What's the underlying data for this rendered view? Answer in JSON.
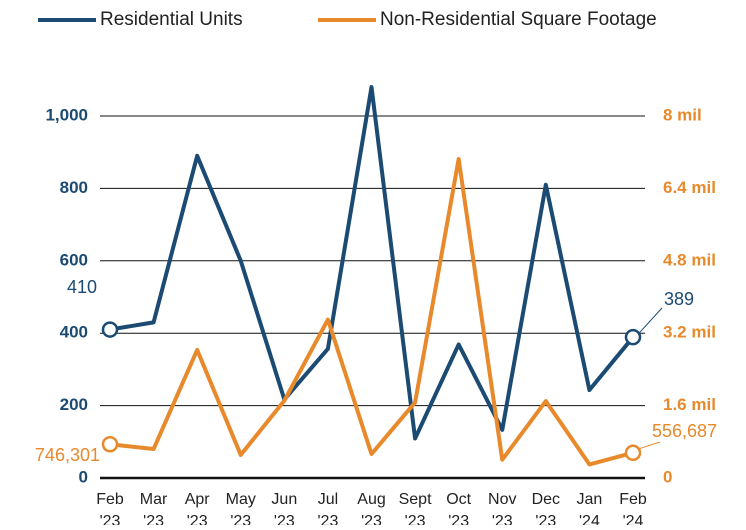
{
  "chart_data": {
    "type": "line",
    "categories": [
      "Feb '23",
      "Mar '23",
      "Apr '23",
      "May '23",
      "Jun '23",
      "Jul '23",
      "Aug '23",
      "Sept '23",
      "Oct '23",
      "Nov '23",
      "Dec '23",
      "Jan '24",
      "Feb '24"
    ],
    "series": [
      {
        "name": "Residential Units",
        "color": "#1b4a73",
        "values": [
          410,
          430,
          890,
          600,
          217,
          357,
          1080,
          109,
          369,
          133,
          810,
          243,
          389
        ]
      },
      {
        "name": "Non-Residential Square Footage",
        "color": "#e8892b",
        "axis": "y2",
        "values": [
          746301,
          640000,
          2830000,
          510000,
          1710000,
          3500000,
          530000,
          1670000,
          7050000,
          405000,
          1700000,
          300000,
          556687
        ],
        "value_labels": [
          "746,301",
          null,
          null,
          null,
          null,
          null,
          null,
          null,
          null,
          null,
          null,
          null,
          "556,687"
        ]
      }
    ],
    "ylim": [
      0,
      1000
    ],
    "yticks": [
      0,
      200,
      400,
      600,
      800,
      {
        "value": 1000,
        "label": "1,000"
      }
    ],
    "y2lim": [
      0,
      8000000
    ],
    "y2ticks": [
      {
        "value": 0,
        "label": "0"
      },
      {
        "value": 1600000,
        "label": "1.6 mil"
      },
      {
        "value": 3200000,
        "label": "3.2 mil"
      },
      {
        "value": 4800000,
        "label": "4.8 mil"
      },
      {
        "value": 6400000,
        "label": "6.4 mil"
      },
      {
        "value": 8000000,
        "label": "8 mil"
      }
    ],
    "grid": true,
    "legend": "top"
  }
}
